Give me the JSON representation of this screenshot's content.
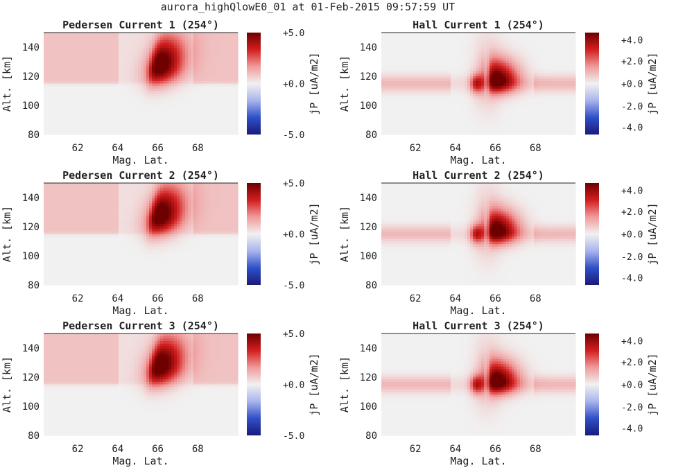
{
  "figure": {
    "title": "aurora_highQlowE0_01 at 01-Feb-2015 09:57:59 UT"
  },
  "colors": {
    "cmap": [
      "#1a1a7a",
      "#2f50c8",
      "#a9b4ec",
      "#f1f1f1",
      "#f09a9a",
      "#d21e1e",
      "#6e0000"
    ],
    "axis": "#222222"
  },
  "chart_data": [
    {
      "type": "heatmap",
      "title": "Pedersen Current 1 (254°)",
      "xlabel": "Mag. Lat.",
      "ylabel": "Alt. [km]",
      "xlim": [
        60.3,
        70.0
      ],
      "ylim": [
        80,
        150
      ],
      "xticks": [
        "62",
        "64",
        "66",
        "68"
      ],
      "yticks": [
        "80",
        "100",
        "120",
        "140"
      ],
      "colorbar": {
        "label": "jP [uA/m2]",
        "ticks": [
          "+5.0",
          "+0.0",
          "-5.0"
        ],
        "range": [
          -5,
          5
        ]
      },
      "field": {
        "kind": "pedersen",
        "band_value": 0.9,
        "peak_value": 5.5,
        "peak_lat": 66.0,
        "peak_alt": 127
      }
    },
    {
      "type": "heatmap",
      "title": "Hall Current 1 (254°)",
      "xlabel": "Mag. Lat.",
      "ylabel": "Alt. [km]",
      "xlim": [
        60.3,
        70.0
      ],
      "ylim": [
        80,
        150
      ],
      "xticks": [
        "62",
        "64",
        "66",
        "68"
      ],
      "yticks": [
        "80",
        "100",
        "120",
        "140"
      ],
      "colorbar": {
        "label": "jP [uA/m2]",
        "ticks": [
          "+4.0",
          "+2.0",
          "+0.0",
          "-2.0",
          "-4.0"
        ],
        "range": [
          -5,
          5
        ]
      },
      "field": {
        "kind": "hall",
        "band_value": 1.1,
        "peak_value": 5.0,
        "peak_lat": 66.1,
        "peak_alt": 117
      }
    },
    {
      "type": "heatmap",
      "title": "Pedersen Current 2 (254°)",
      "xlabel": "Mag. Lat.",
      "ylabel": "Alt. [km]",
      "xlim": [
        60.3,
        70.0
      ],
      "ylim": [
        80,
        150
      ],
      "xticks": [
        "62",
        "64",
        "66",
        "68"
      ],
      "yticks": [
        "80",
        "100",
        "120",
        "140"
      ],
      "colorbar": {
        "label": "jP [uA/m2]",
        "ticks": [
          "+5.0",
          "+0.0",
          "-5.0"
        ],
        "range": [
          -5,
          5
        ]
      },
      "field": {
        "kind": "pedersen",
        "band_value": 0.9,
        "peak_value": 5.5,
        "peak_lat": 66.0,
        "peak_alt": 127
      }
    },
    {
      "type": "heatmap",
      "title": "Hall Current 2 (254°)",
      "xlabel": "Mag. Lat.",
      "ylabel": "Alt. [km]",
      "xlim": [
        60.3,
        70.0
      ],
      "ylim": [
        80,
        150
      ],
      "xticks": [
        "62",
        "64",
        "66",
        "68"
      ],
      "yticks": [
        "80",
        "100",
        "120",
        "140"
      ],
      "colorbar": {
        "label": "jP [uA/m2]",
        "ticks": [
          "+4.0",
          "+2.0",
          "+0.0",
          "-2.0",
          "-4.0"
        ],
        "range": [
          -5,
          5
        ]
      },
      "field": {
        "kind": "hall",
        "band_value": 1.1,
        "peak_value": 5.0,
        "peak_lat": 66.1,
        "peak_alt": 117
      }
    },
    {
      "type": "heatmap",
      "title": "Pedersen Current 3 (254°)",
      "xlabel": "Mag. Lat.",
      "ylabel": "Alt. [km]",
      "xlim": [
        60.3,
        70.0
      ],
      "ylim": [
        80,
        150
      ],
      "xticks": [
        "62",
        "64",
        "66",
        "68"
      ],
      "yticks": [
        "80",
        "100",
        "120",
        "140"
      ],
      "colorbar": {
        "label": "jP [uA/m2]",
        "ticks": [
          "+5.0",
          "+0.0",
          "-5.0"
        ],
        "range": [
          -5,
          5
        ]
      },
      "field": {
        "kind": "pedersen",
        "band_value": 0.9,
        "peak_value": 5.5,
        "peak_lat": 66.0,
        "peak_alt": 127
      }
    },
    {
      "type": "heatmap",
      "title": "Hall Current 3 (254°)",
      "xlabel": "Mag. Lat.",
      "ylabel": "Alt. [km]",
      "xlim": [
        60.3,
        70.0
      ],
      "ylim": [
        80,
        150
      ],
      "xticks": [
        "62",
        "64",
        "66",
        "68"
      ],
      "yticks": [
        "80",
        "100",
        "120",
        "140"
      ],
      "colorbar": {
        "label": "jP [uA/m2]",
        "ticks": [
          "+4.0",
          "+2.0",
          "+0.0",
          "-2.0",
          "-4.0"
        ],
        "range": [
          -5,
          5
        ]
      },
      "field": {
        "kind": "hall",
        "band_value": 1.1,
        "peak_value": 5.0,
        "peak_lat": 66.1,
        "peak_alt": 117
      }
    }
  ]
}
